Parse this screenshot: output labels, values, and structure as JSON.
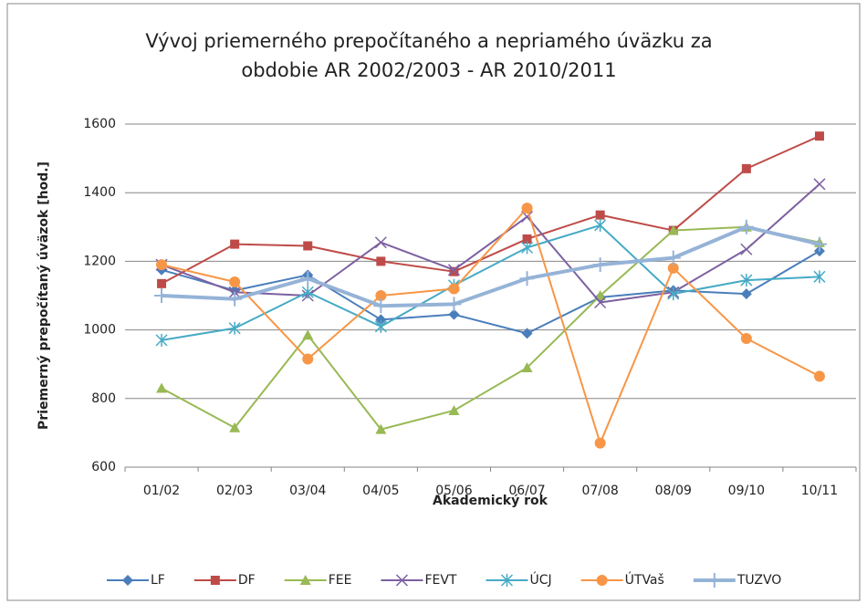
{
  "chart_data": {
    "type": "line",
    "title": [
      "Vývoj priemerného prepočítaného a nepriamého úväzku za",
      "obdobie AR 2002/2003 - AR 2010/2011"
    ],
    "x_label": "Akademický rok",
    "y_label": "Priemerný prepočítaný úväzok [hod.]",
    "categories": [
      "01/02",
      "02/03",
      "03/04",
      "04/05",
      "05/06",
      "06/07",
      "07/08",
      "08/09",
      "09/10",
      "10/11"
    ],
    "ylim": [
      600,
      1600
    ],
    "yticks": [
      600,
      800,
      1000,
      1200,
      1400,
      1600
    ],
    "grid": true,
    "legend": "bottom",
    "series": [
      {
        "name": "LF",
        "color": "#4a7ebb",
        "marker": "diamond",
        "values": [
          1175,
          1115,
          1160,
          1030,
          1045,
          990,
          1095,
          1115,
          1105,
          1230
        ]
      },
      {
        "name": "DF",
        "color": "#be4b48",
        "marker": "square",
        "values": [
          1135,
          1250,
          1245,
          1200,
          1170,
          1265,
          1335,
          1290,
          1470,
          1565
        ]
      },
      {
        "name": "FEE",
        "color": "#98b954",
        "marker": "triangle",
        "values": [
          830,
          715,
          985,
          710,
          765,
          890,
          1100,
          1290,
          1300,
          1255
        ]
      },
      {
        "name": "FEVT",
        "color": "#7d60a0",
        "marker": "x",
        "values": [
          1190,
          1110,
          1100,
          1255,
          1175,
          1330,
          1080,
          1110,
          1235,
          1425
        ]
      },
      {
        "name": "ÚCJ",
        "color": "#46aac5",
        "marker": "star",
        "values": [
          970,
          1005,
          1110,
          1010,
          1130,
          1240,
          1305,
          1105,
          1145,
          1155
        ]
      },
      {
        "name": "ÚTVaš",
        "color": "#f79646",
        "marker": "circle",
        "values": [
          1190,
          1140,
          915,
          1100,
          1120,
          1355,
          670,
          1180,
          975,
          865
        ]
      },
      {
        "name": "TUZVO",
        "color": "#95b3d7",
        "marker": "plus",
        "width": 4,
        "values": [
          1100,
          1090,
          1150,
          1070,
          1075,
          1150,
          1190,
          1210,
          1300,
          1250
        ]
      }
    ]
  }
}
